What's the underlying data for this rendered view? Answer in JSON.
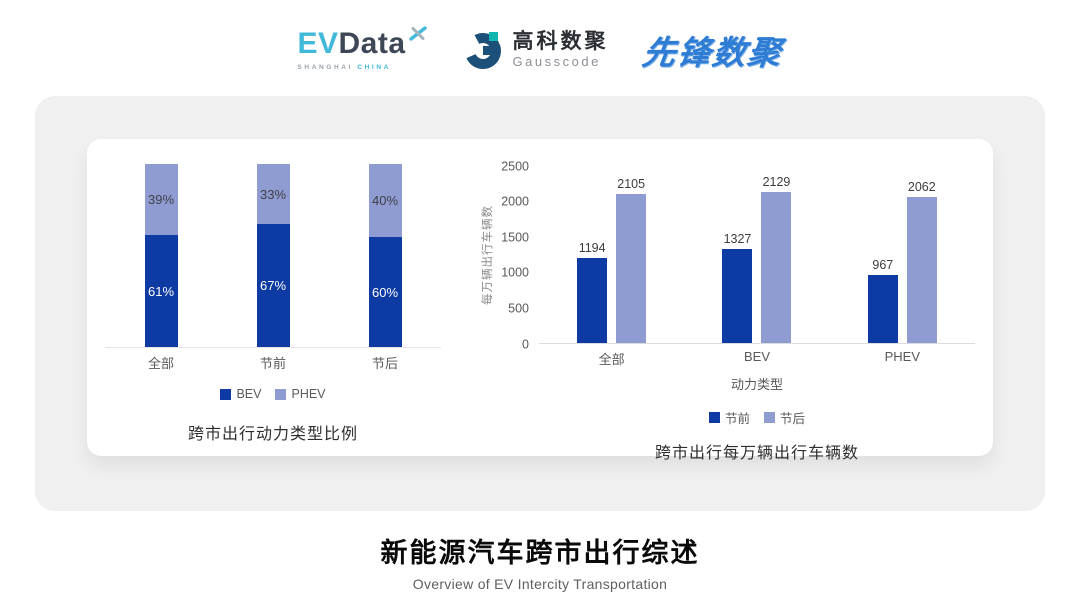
{
  "header": {
    "evdata": {
      "ev": "EV",
      "data": "Data",
      "sub_left": "SHANGHAI",
      "sub_right": "CHINA",
      "accent_color": "#41b9d9",
      "text_color": "#3d4756"
    },
    "gausscode": {
      "cn": "高科数聚",
      "en": "Gausscode",
      "mark_color": "#1c5078",
      "accent_color": "#13b5b1"
    },
    "pioneer": {
      "text": "先锋数聚",
      "color": "#2e7cd3"
    }
  },
  "chart_data": [
    {
      "type": "bar",
      "variant": "stacked-percent",
      "title": "跨市出行动力类型比例",
      "categories": [
        "全部",
        "节前",
        "节后"
      ],
      "series": [
        {
          "name": "BEV",
          "values": [
            61,
            67,
            60
          ],
          "color": "#0d3aa3",
          "label_color": "#ffffff"
        },
        {
          "name": "PHEV",
          "values": [
            39,
            33,
            40
          ],
          "color": "#8f9cd2",
          "label_color": "#3f3f46"
        }
      ],
      "unit": "%",
      "ylim": [
        0,
        100
      ],
      "grid": false,
      "legend_position": "bottom"
    },
    {
      "type": "bar",
      "variant": "grouped",
      "title": "跨市出行每万辆出行车辆数",
      "categories": [
        "全部",
        "BEV",
        "PHEV"
      ],
      "series": [
        {
          "name": "节前",
          "values": [
            1194,
            1327,
            967
          ],
          "color": "#0d3aa3"
        },
        {
          "name": "节后",
          "values": [
            2105,
            2129,
            2062
          ],
          "color": "#8f9cd2"
        }
      ],
      "xlabel": "动力类型",
      "ylabel": "每万辆出行车辆数",
      "ylim": [
        0,
        2500
      ],
      "yticks": [
        0,
        500,
        1000,
        1500,
        2000,
        2500
      ],
      "grid": false,
      "legend_position": "bottom"
    }
  ],
  "footer": {
    "title": "新能源汽车跨市出行综述",
    "subtitle": "Overview of EV Intercity Transportation"
  }
}
